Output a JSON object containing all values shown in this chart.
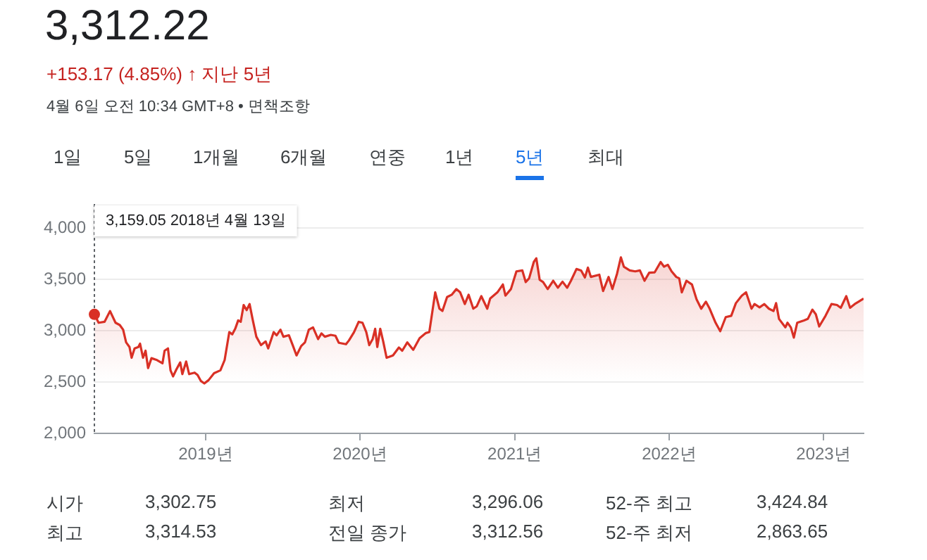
{
  "chart_data": {
    "type": "area",
    "title": "3,312.22",
    "subtitle": "+153.17 (4.85%) ↑ 지난 5년",
    "annotations": [
      "4월 6일 오전 10:34 GMT+8 • 면책조항",
      "1일",
      "5일",
      "1개월",
      "6개월",
      "연중",
      "1년",
      "5년",
      "최대",
      "3,159.05 2018년 4월 13일",
      "시가",
      "3,302.75",
      "최저",
      "3,296.06",
      "52-주 최고",
      "3,424.84",
      "최고",
      "3,314.53",
      "전일 종가",
      "3,312.56",
      "52-주 최저",
      "2,863.65"
    ],
    "x": [
      "2018-04-13",
      "2018-04-23",
      "2018-05-07",
      "2018-05-20",
      "2018-06-02",
      "2018-06-12",
      "2018-06-20",
      "2018-06-27",
      "2018-07-05",
      "2018-07-10",
      "2018-07-17",
      "2018-07-26",
      "2018-07-30",
      "2018-08-06",
      "2018-08-12",
      "2018-08-18",
      "2018-08-26",
      "2018-09-08",
      "2018-09-21",
      "2018-09-26",
      "2018-10-04",
      "2018-10-10",
      "2018-10-16",
      "2018-10-24",
      "2018-11-02",
      "2018-11-07",
      "2018-11-16",
      "2018-11-23",
      "2018-12-06",
      "2018-12-13",
      "2018-12-21",
      "2018-12-29",
      "2019-01-08",
      "2019-01-21",
      "2019-02-05",
      "2019-02-15",
      "2019-02-26",
      "2019-03-05",
      "2019-03-12",
      "2019-03-19",
      "2019-03-25",
      "2019-04-01",
      "2019-04-08",
      "2019-04-15",
      "2019-04-22",
      "2019-05-01",
      "2019-05-12",
      "2019-05-23",
      "2019-05-29",
      "2019-06-11",
      "2019-06-18",
      "2019-06-27",
      "2019-07-04",
      "2019-07-17",
      "2019-07-26",
      "2019-08-04",
      "2019-08-15",
      "2019-08-24",
      "2019-09-02",
      "2019-09-12",
      "2019-09-24",
      "2019-10-02",
      "2019-10-10",
      "2019-10-24",
      "2019-11-04",
      "2019-11-12",
      "2019-11-29",
      "2019-12-06",
      "2019-12-18",
      "2019-12-29",
      "2020-01-07",
      "2020-01-16",
      "2020-01-23",
      "2020-01-31",
      "2020-02-06",
      "2020-02-11",
      "2020-02-18",
      "2020-02-25",
      "2020-03-04",
      "2020-03-19",
      "2020-04-02",
      "2020-04-10",
      "2020-04-22",
      "2020-05-06",
      "2020-05-21",
      "2020-06-05",
      "2020-06-13",
      "2020-06-27",
      "2020-07-07",
      "2020-07-14",
      "2020-07-25",
      "2020-08-05",
      "2020-08-16",
      "2020-08-25",
      "2020-09-05",
      "2020-09-14",
      "2020-09-25",
      "2020-10-03",
      "2020-10-14",
      "2020-10-28",
      "2020-11-04",
      "2020-11-21",
      "2020-12-04",
      "2020-12-10",
      "2020-12-23",
      "2021-01-05",
      "2021-01-19",
      "2021-01-27",
      "2021-02-04",
      "2021-02-15",
      "2021-02-21",
      "2021-03-01",
      "2021-03-09",
      "2021-03-20",
      "2021-04-02",
      "2021-04-13",
      "2021-04-24",
      "2021-05-05",
      "2021-05-14",
      "2021-05-27",
      "2021-06-07",
      "2021-06-16",
      "2021-06-23",
      "2021-06-30",
      "2021-07-20",
      "2021-07-29",
      "2021-08-11",
      "2021-08-20",
      "2021-08-31",
      "2021-09-09",
      "2021-09-16",
      "2021-09-30",
      "2021-10-13",
      "2021-10-24",
      "2021-11-04",
      "2021-11-15",
      "2021-11-28",
      "2021-12-12",
      "2021-12-20",
      "2021-12-29",
      "2022-01-07",
      "2022-01-18",
      "2022-01-25",
      "2022-01-31",
      "2022-02-11",
      "2022-02-24",
      "2022-03-07",
      "2022-03-18",
      "2022-03-29",
      "2022-04-07",
      "2022-04-21",
      "2022-05-02",
      "2022-05-15",
      "2022-05-28",
      "2022-06-08",
      "2022-06-22",
      "2022-07-02",
      "2022-07-15",
      "2022-07-22",
      "2022-08-03",
      "2022-08-14",
      "2022-08-25",
      "2022-09-05",
      "2022-09-11",
      "2022-09-18",
      "2022-10-03",
      "2022-10-08",
      "2022-10-16",
      "2022-10-23",
      "2022-10-31",
      "2022-11-16",
      "2022-11-25",
      "2022-12-06",
      "2022-12-14",
      "2022-12-22",
      "2023-01-06",
      "2023-01-20",
      "2023-02-02",
      "2023-02-11",
      "2023-02-24",
      "2023-03-05",
      "2023-03-16",
      "2023-03-25",
      "2023-04-06"
    ],
    "series": [
      {
        "color": "#d93025",
        "values": [
          3159,
          3077,
          3086,
          3191,
          3077,
          3055,
          3009,
          2886,
          2841,
          2736,
          2827,
          2841,
          2873,
          2736,
          2805,
          2636,
          2732,
          2714,
          2682,
          2805,
          2827,
          2614,
          2555,
          2623,
          2691,
          2577,
          2700,
          2577,
          2591,
          2568,
          2509,
          2486,
          2518,
          2586,
          2614,
          2714,
          2986,
          2964,
          3018,
          3100,
          3086,
          3250,
          3200,
          3259,
          3114,
          2941,
          2859,
          2895,
          2827,
          2986,
          2955,
          3009,
          2941,
          2955,
          2859,
          2759,
          2850,
          2886,
          3009,
          3032,
          2918,
          2973,
          2941,
          2959,
          2950,
          2882,
          2868,
          2905,
          2986,
          3086,
          3077,
          2986,
          2859,
          2918,
          3018,
          2841,
          3018,
          2895,
          2736,
          2759,
          2836,
          2805,
          2886,
          2814,
          2927,
          2977,
          2986,
          3373,
          3214,
          3191,
          3327,
          3350,
          3405,
          3373,
          3259,
          3350,
          3214,
          3236,
          3336,
          3214,
          3314,
          3373,
          3450,
          3341,
          3405,
          3577,
          3586,
          3473,
          3509,
          3668,
          3705,
          3495,
          3473,
          3405,
          3486,
          3418,
          3477,
          3418,
          3486,
          3600,
          3586,
          3518,
          3614,
          3523,
          3545,
          3386,
          3523,
          3405,
          3555,
          3714,
          3623,
          3586,
          3577,
          3586,
          3486,
          3564,
          3568,
          3668,
          3623,
          3641,
          3577,
          3523,
          3509,
          3373,
          3486,
          3450,
          3305,
          3214,
          3282,
          3214,
          3077,
          2995,
          3132,
          3145,
          3268,
          3341,
          3373,
          3214,
          3259,
          3227,
          3259,
          3214,
          3191,
          3268,
          3114,
          3032,
          3077,
          3032,
          2932,
          3077,
          3100,
          3114,
          3205,
          3159,
          3041,
          3145,
          3259,
          3250,
          3223,
          3336,
          3223,
          3259,
          3282,
          3312
        ]
      }
    ],
    "xlim": [
      "2018-04-13",
      "2023-04-06"
    ],
    "xticks": [
      {
        "value": "2019-01-01",
        "label": "2019년"
      },
      {
        "value": "2020-01-01",
        "label": "2020년"
      },
      {
        "value": "2021-01-01",
        "label": "2021년"
      },
      {
        "value": "2022-01-01",
        "label": "2022년"
      },
      {
        "value": "2023-01-01",
        "label": "2023년"
      }
    ],
    "ylim": [
      2000,
      4000
    ],
    "yticks": [
      {
        "value": 2000,
        "label": "2,000"
      },
      {
        "value": 2500,
        "label": "2,500"
      },
      {
        "value": 3000,
        "label": "3,000"
      },
      {
        "value": 3500,
        "label": "3,500"
      },
      {
        "value": 4000,
        "label": "4,000"
      }
    ],
    "ref_lines": [
      {
        "axis": "x",
        "value": "2018-04-13",
        "line_style": "dotted",
        "color": "#5f6368"
      }
    ],
    "grid": "y",
    "marker": "none",
    "line_style": "solid"
  }
}
